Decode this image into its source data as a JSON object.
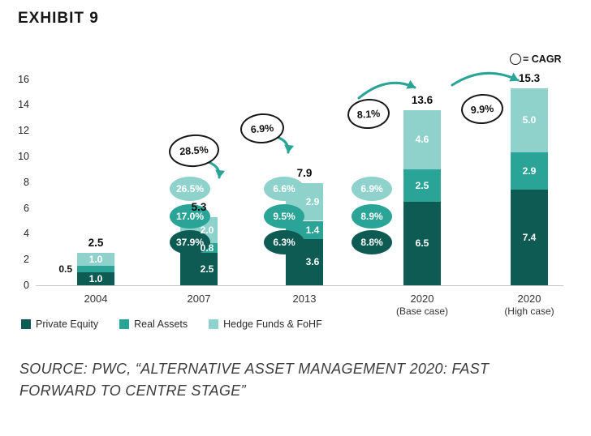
{
  "title": "EXHIBIT 9",
  "cagr_legend": "= CAGR",
  "source": "SOURCE: PWC, “ALTERNATIVE ASSET MANAGEMENT 2020: FAST FORWARD TO CENTRE STAGE”",
  "chart_data": {
    "type": "bar",
    "stacked": true,
    "title": "EXHIBIT 9",
    "ylim": [
      0,
      16
    ],
    "yticks": [
      0,
      2,
      4,
      6,
      8,
      10,
      12,
      14,
      16
    ],
    "categories": [
      {
        "label": "2004",
        "sublabel": ""
      },
      {
        "label": "2007",
        "sublabel": ""
      },
      {
        "label": "2013",
        "sublabel": ""
      },
      {
        "label": "2020",
        "sublabel": "(Base case)"
      },
      {
        "label": "2020",
        "sublabel": "(High case)"
      }
    ],
    "series": [
      {
        "name": "Private Equity",
        "color": "#0e5b53",
        "values": [
          1.0,
          2.5,
          3.6,
          6.5,
          7.4
        ]
      },
      {
        "name": "Real Assets",
        "color": "#2aa496",
        "values": [
          0.5,
          0.8,
          1.4,
          2.5,
          2.9
        ]
      },
      {
        "name": "Hedge Funds & FoHF",
        "color": "#8fd2cc",
        "values": [
          1.0,
          2.0,
          2.9,
          4.6,
          5.0
        ]
      }
    ],
    "totals": [
      2.5,
      5.3,
      7.9,
      13.6,
      15.3
    ],
    "segment_cagr_groups": [
      {
        "category_index": 1,
        "items": [
          {
            "series": "Hedge Funds & FoHF",
            "label": "26.5%"
          },
          {
            "series": "Real Assets",
            "label": "17.0%"
          },
          {
            "series": "Private Equity",
            "label": "37.9%"
          }
        ]
      },
      {
        "category_index": 2,
        "items": [
          {
            "series": "Hedge Funds & FoHF",
            "label": "6.6%"
          },
          {
            "series": "Real Assets",
            "label": "9.5%"
          },
          {
            "series": "Private Equity",
            "label": "6.3%"
          }
        ]
      },
      {
        "category_index": 3,
        "items": [
          {
            "series": "Hedge Funds & FoHF",
            "label": "6.9%"
          },
          {
            "series": "Real Assets",
            "label": "8.9%"
          },
          {
            "series": "Private Equity",
            "label": "8.8%"
          }
        ]
      }
    ],
    "total_cagrs": [
      "28.5%",
      "6.9%",
      "8.1%",
      "9.9%"
    ],
    "legend_position": "bottom-left",
    "grid": false
  }
}
